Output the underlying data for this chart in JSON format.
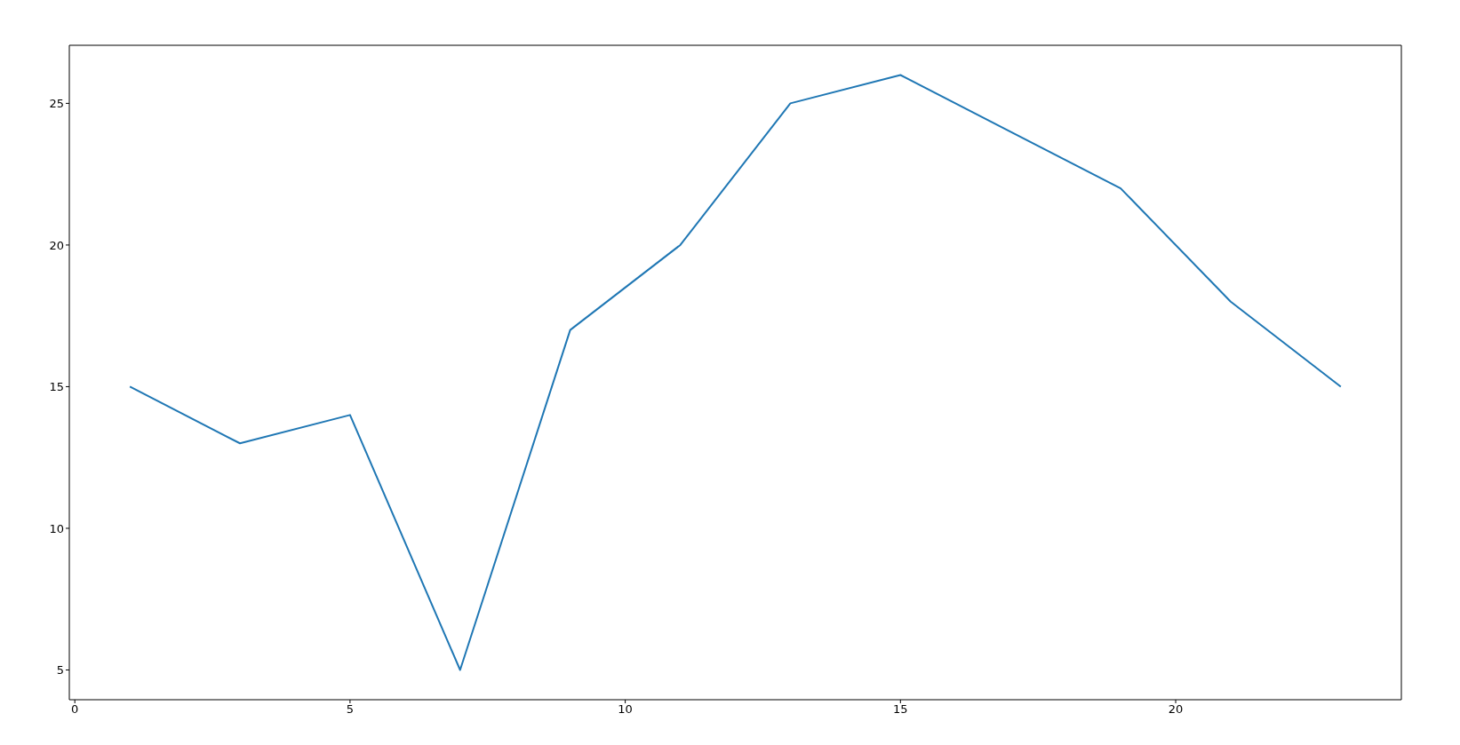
{
  "chart_data": {
    "type": "line",
    "x": [
      1,
      3,
      5,
      7,
      9,
      11,
      13,
      15,
      17,
      19,
      21,
      23
    ],
    "series": [
      {
        "color": "#1f77b4",
        "values": [
          15,
          13,
          14,
          5,
          17,
          20,
          25,
          26,
          24,
          22,
          18,
          15
        ]
      }
    ],
    "xlim": [
      -0.1,
      24.1
    ],
    "xticks": [
      0,
      5,
      10,
      15,
      20
    ],
    "ylim": [
      3.95,
      27.05
    ],
    "yticks": [
      5,
      10,
      15,
      20,
      25
    ],
    "grid": false,
    "marker": "none",
    "line_style": "solid"
  }
}
